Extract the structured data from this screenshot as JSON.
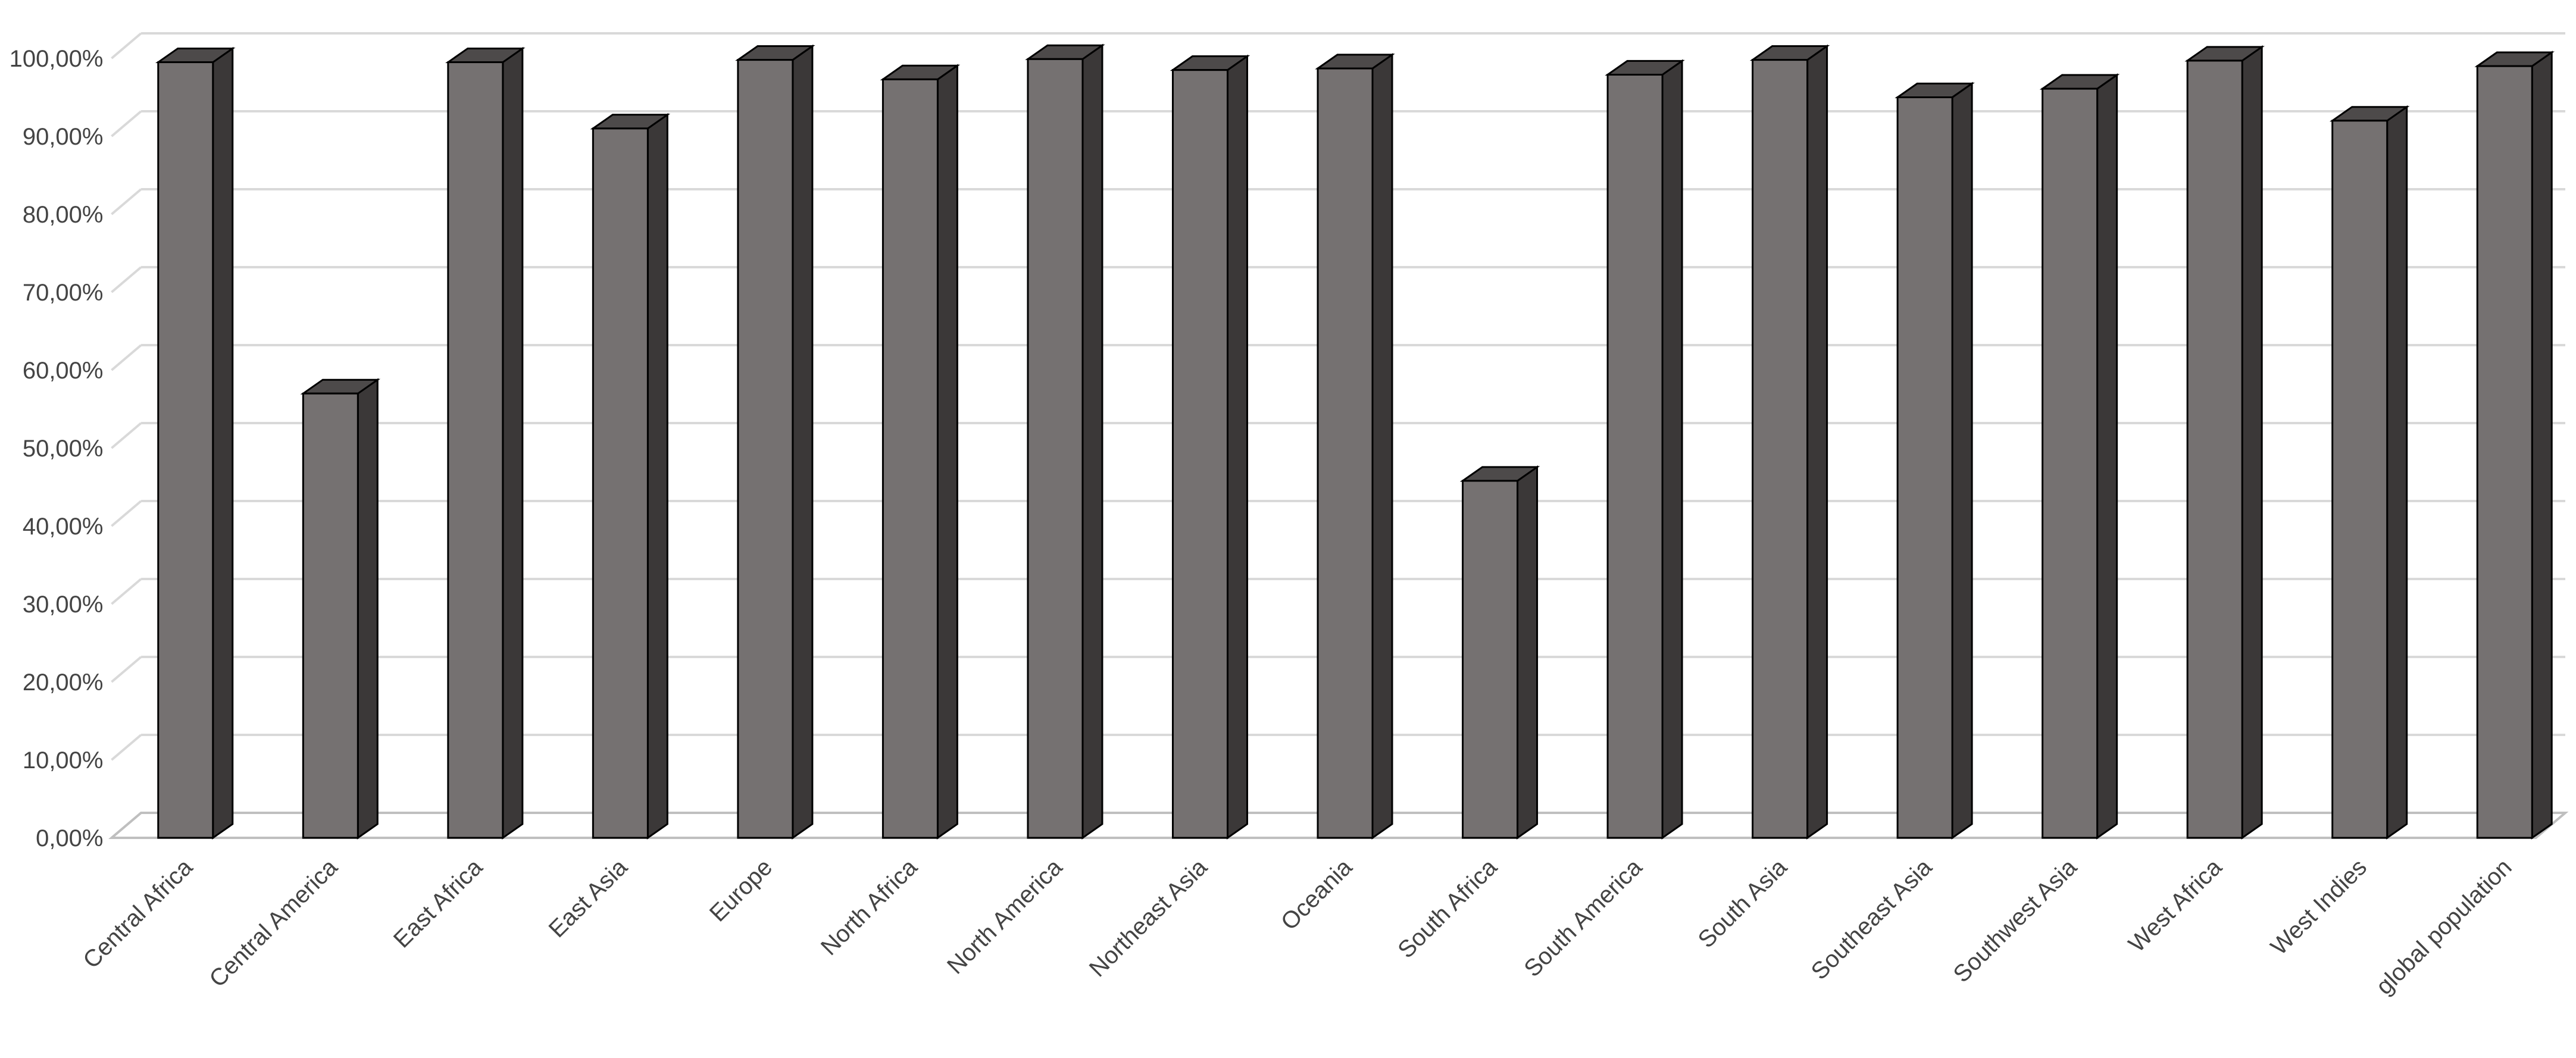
{
  "chart_data": {
    "type": "bar",
    "bar_style": "3d-column",
    "categories": [
      "Central Africa",
      "Central America",
      "East Africa",
      "East Asia",
      "Europe",
      "North Africa",
      "North America",
      "Northeast Asia",
      "Oceania",
      "South Africa",
      "South America",
      "South Asia",
      "Southeast Asia",
      "Southwest Asia",
      "West Africa",
      "West Indies",
      "global population"
    ],
    "values": [
      99.5,
      57.0,
      99.5,
      91.0,
      99.8,
      97.3,
      99.9,
      98.5,
      98.7,
      45.8,
      97.9,
      99.8,
      95.0,
      96.1,
      99.7,
      92.0,
      99.0
    ],
    "title": "",
    "xlabel": "",
    "ylabel": "",
    "ylim": [
      0,
      100
    ],
    "yticks": [
      "0,00%",
      "10,00%",
      "20,00%",
      "30,00%",
      "40,00%",
      "50,00%",
      "60,00%",
      "70,00%",
      "80,00%",
      "90,00%",
      "100,00%"
    ],
    "grid": true,
    "legend": "none",
    "colors": {
      "bar_front": "#757171",
      "bar_side": "#3b3838",
      "bar_top": "#4d4a4a",
      "grid": "#d9d9d9",
      "text": "#444444"
    }
  }
}
